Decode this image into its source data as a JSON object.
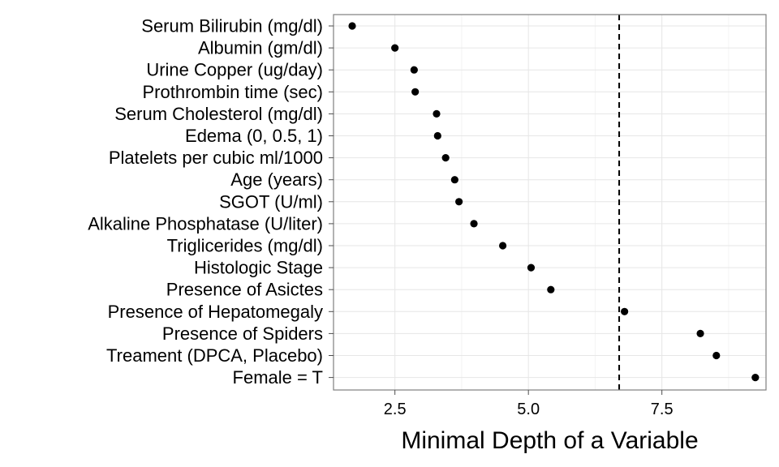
{
  "chart_data": {
    "type": "scatter",
    "title": "",
    "xlabel": "Minimal Depth of a Variable",
    "ylabel": "",
    "xlim": [
      1.35,
      9.45
    ],
    "x_ticks": [
      2.5,
      5.0,
      7.5
    ],
    "x_tick_labels": [
      "2.5",
      "5.0",
      "7.5"
    ],
    "grid": true,
    "threshold": 6.7,
    "threshold_style": "dashed",
    "point_color": "#000000",
    "points": [
      {
        "label": "Serum Bilirubin (mg/dl)",
        "x": 1.7
      },
      {
        "label": "Albumin (gm/dl)",
        "x": 2.5
      },
      {
        "label": "Urine Copper (ug/day)",
        "x": 2.86
      },
      {
        "label": "Prothrombin time (sec)",
        "x": 2.88
      },
      {
        "label": "Serum Cholesterol (mg/dl)",
        "x": 3.28
      },
      {
        "label": "Edema (0, 0.5, 1)",
        "x": 3.3
      },
      {
        "label": "Platelets per cubic ml/1000",
        "x": 3.45
      },
      {
        "label": "Age (years)",
        "x": 3.62
      },
      {
        "label": "SGOT (U/ml)",
        "x": 3.7
      },
      {
        "label": "Alkaline Phosphatase (U/liter)",
        "x": 3.98
      },
      {
        "label": "Triglicerides (mg/dl)",
        "x": 4.52
      },
      {
        "label": "Histologic Stage",
        "x": 5.05
      },
      {
        "label": "Presence of Asictes",
        "x": 5.42
      },
      {
        "label": "Presence of Hepatomegaly",
        "x": 6.8
      },
      {
        "label": "Presence of Spiders",
        "x": 8.22
      },
      {
        "label": "Treament (DPCA, Placebo)",
        "x": 8.52
      },
      {
        "label": "Female = T",
        "x": 9.25
      }
    ]
  }
}
